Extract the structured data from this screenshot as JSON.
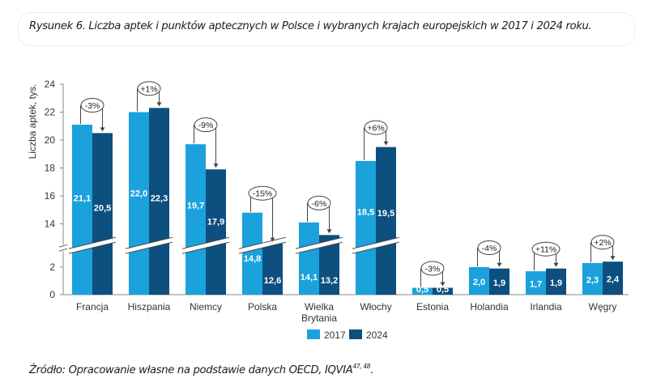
{
  "caption": "Rysunek 6. Liczba aptek i punktów aptecznych w Polsce i wybranych krajach europejskich w 2017 i 2024 roku.",
  "source": {
    "text": "Źródło: Opracowanie własne na podstawie danych OECD, IQVIA",
    "refs": "47, 48",
    "end": "."
  },
  "colors": {
    "series_2017": "#1ba1dc",
    "series_2024": "#0d4f7f"
  },
  "chart_data": {
    "type": "bar",
    "title": "",
    "xlabel": "",
    "ylabel": "Liczba aptek, tys.",
    "ylim": [
      0,
      24
    ],
    "y_axis_break": [
      3.4,
      12.2
    ],
    "yticks": [
      "0",
      "2",
      "14",
      "16",
      "18",
      "20",
      "22",
      "24"
    ],
    "ytick_values": [
      0,
      2,
      14,
      16,
      18,
      20,
      22,
      24
    ],
    "grid": false,
    "legend": "bottom-center",
    "categories": [
      "Francja",
      "Hiszpania",
      "Niemcy",
      "Polska",
      "Wielka Brytania",
      "Włochy",
      "Estonia",
      "Holandia",
      "Irlandia",
      "Węgry"
    ],
    "category_lines": [
      [
        "Francja"
      ],
      [
        "Hiszpania"
      ],
      [
        "Niemcy"
      ],
      [
        "Polska"
      ],
      [
        "Wielka",
        "Brytania"
      ],
      [
        "Włochy"
      ],
      [
        "Estonia"
      ],
      [
        "Holandia"
      ],
      [
        "Irlandia"
      ],
      [
        "Węgry"
      ]
    ],
    "series": [
      {
        "name": "2017",
        "values": [
          21.1,
          22.0,
          19.7,
          14.8,
          14.1,
          18.5,
          0.5,
          2.0,
          1.7,
          2.3
        ],
        "labels": [
          "21,1",
          "22,0",
          "19,7",
          "14,8",
          "14,1",
          "18,5",
          "0,5",
          "2,0",
          "1,7",
          "2,3"
        ]
      },
      {
        "name": "2024",
        "values": [
          20.5,
          22.3,
          17.9,
          12.6,
          13.2,
          19.5,
          0.5,
          1.9,
          1.9,
          2.4
        ],
        "labels": [
          "20,5",
          "22,3",
          "17,9",
          "12,6",
          "13,2",
          "19,5",
          "0,5",
          "1,9",
          "1,9",
          "2,4"
        ]
      }
    ],
    "annotations": [
      "-3%",
      "+1%",
      "-9%",
      "-15%",
      "-6%",
      "+6%",
      "-3%",
      "-4%",
      "+11%",
      "+2%"
    ]
  }
}
